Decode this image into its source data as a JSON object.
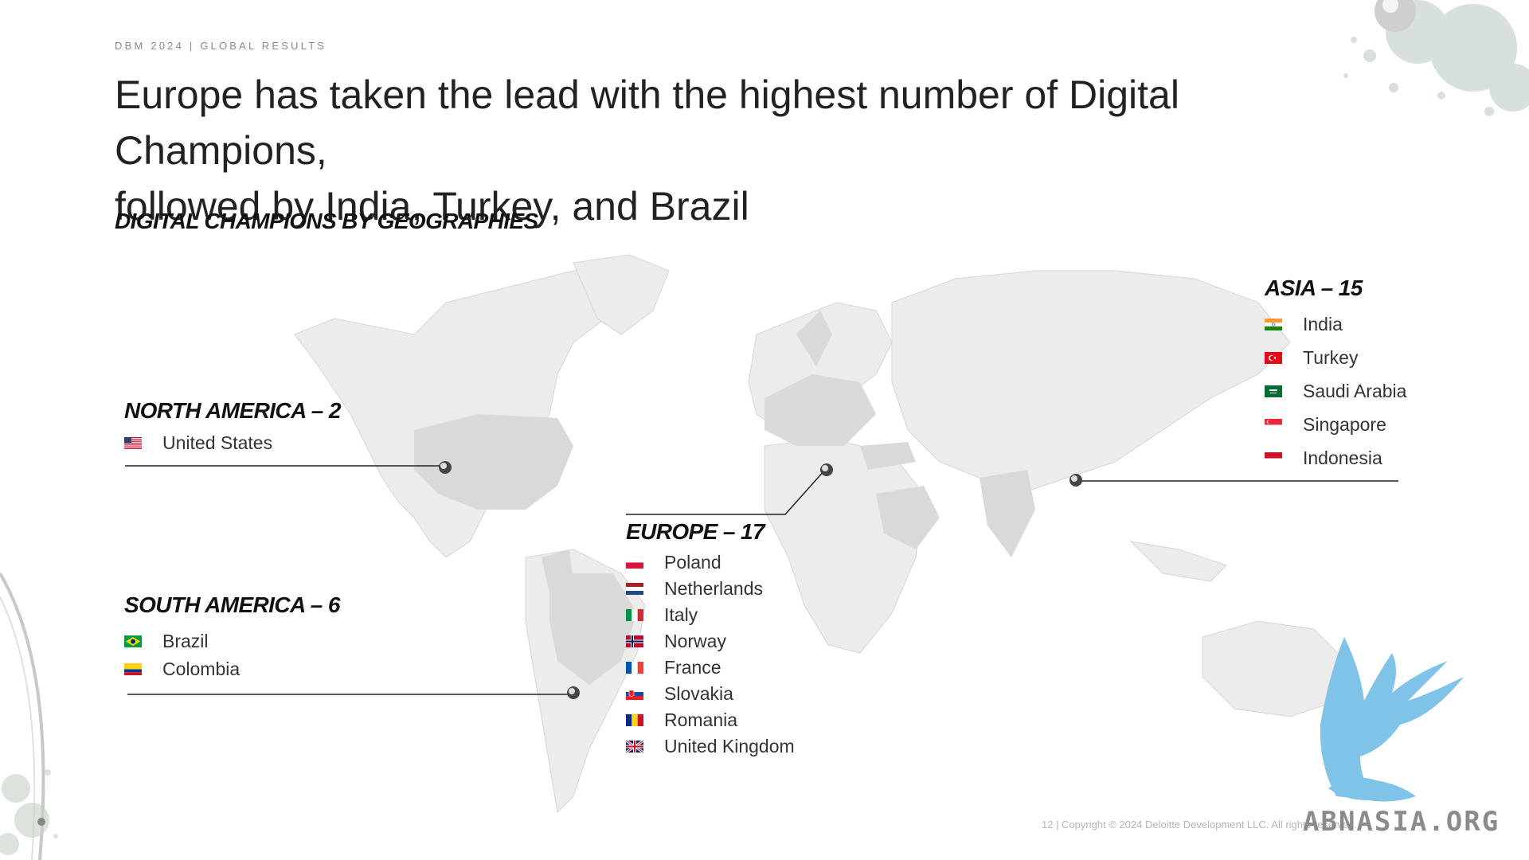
{
  "header": {
    "eyebrow": "DBM 2024 | GLOBAL RESULTS",
    "headline_line1": "Europe has taken the lead with the highest number of Digital Champions,",
    "headline_line2": "followed by India, Turkey, and Brazil"
  },
  "section_title": "DIGITAL CHAMPIONS BY GEOGRAPHIES",
  "regions": {
    "north_america": {
      "title": "NORTH AMERICA – 2",
      "countries": [
        "United States"
      ]
    },
    "south_america": {
      "title": "SOUTH AMERICA – 6",
      "countries": [
        "Brazil",
        "Colombia"
      ]
    },
    "europe": {
      "title": "EUROPE – 17",
      "countries": [
        "Poland",
        "Netherlands",
        "Italy",
        "Norway",
        "France",
        "Slovakia",
        "Romania",
        "United Kingdom"
      ]
    },
    "asia": {
      "title": "ASIA – 15",
      "countries": [
        "India",
        "Turkey",
        "Saudi Arabia",
        "Singapore",
        "Indonesia"
      ]
    }
  },
  "footer": {
    "text": "12 | Copyright © 2024 Deloitte Development LLC. All rights reserved."
  },
  "watermark": {
    "text": "ABNASIA.ORG"
  },
  "colors": {
    "map_land": "#e3e3e3",
    "map_highlight": "#d4d4d4",
    "text_dark": "#111111",
    "logo_blue": "#7fc4e8"
  },
  "icons": {
    "pin": "pin-icon",
    "flags": "flag-icon"
  }
}
